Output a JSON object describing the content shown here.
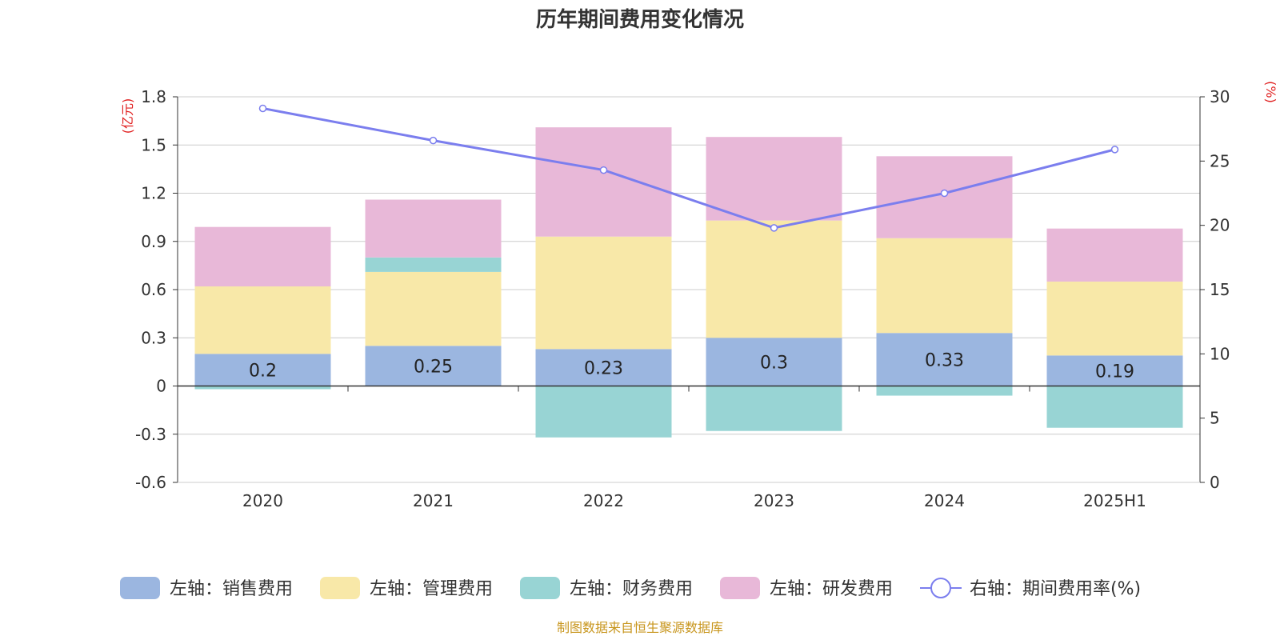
{
  "chart_data": {
    "type": "bar",
    "title": "历年期间费用变化情况",
    "categories": [
      "2020",
      "2021",
      "2022",
      "2023",
      "2024",
      "2025H1"
    ],
    "left_axis": {
      "unit": "(亿元)",
      "ylim": [
        -0.6,
        1.8
      ],
      "ticks": [
        "1.8",
        "1.5",
        "1.2",
        "0.9",
        "0.6",
        "0.3",
        "0",
        "-0.3",
        "-0.6"
      ],
      "tick_values": [
        1.8,
        1.5,
        1.2,
        0.9,
        0.6,
        0.3,
        0,
        -0.3,
        -0.6
      ]
    },
    "right_axis": {
      "unit": "(%)",
      "ylim": [
        0,
        30
      ],
      "ticks": [
        "30",
        "25",
        "20",
        "15",
        "10",
        "5",
        "0"
      ],
      "tick_values": [
        30,
        25,
        20,
        15,
        10,
        5,
        0
      ]
    },
    "stacked": true,
    "grid": true,
    "legend_position": "bottom",
    "series": [
      {
        "name": "左轴：销售费用",
        "color": "#9bb6e0",
        "axis": "left",
        "values": [
          0.2,
          0.25,
          0.23,
          0.3,
          0.33,
          0.19
        ],
        "labels": [
          "0.2",
          "0.25",
          "0.23",
          "0.3",
          "0.33",
          "0.19"
        ]
      },
      {
        "name": "左轴：管理费用",
        "color": "#f8e8a8",
        "axis": "left",
        "values": [
          0.42,
          0.46,
          0.7,
          0.73,
          0.59,
          0.46
        ]
      },
      {
        "name": "左轴：财务费用",
        "color": "#98d4d4",
        "axis": "left",
        "values": [
          -0.02,
          0.09,
          -0.32,
          -0.28,
          -0.06,
          -0.26
        ]
      },
      {
        "name": "左轴：研发费用",
        "color": "#e8b8d8",
        "axis": "left",
        "values": [
          0.37,
          0.36,
          0.68,
          0.52,
          0.51,
          0.33
        ]
      },
      {
        "name": "右轴：期间费用率(%)",
        "color": "#7b7eee",
        "axis": "right",
        "type": "line",
        "values": [
          29.1,
          26.6,
          24.3,
          19.8,
          22.5,
          25.9
        ]
      }
    ],
    "source": "制图数据来自恒生聚源数据库"
  }
}
